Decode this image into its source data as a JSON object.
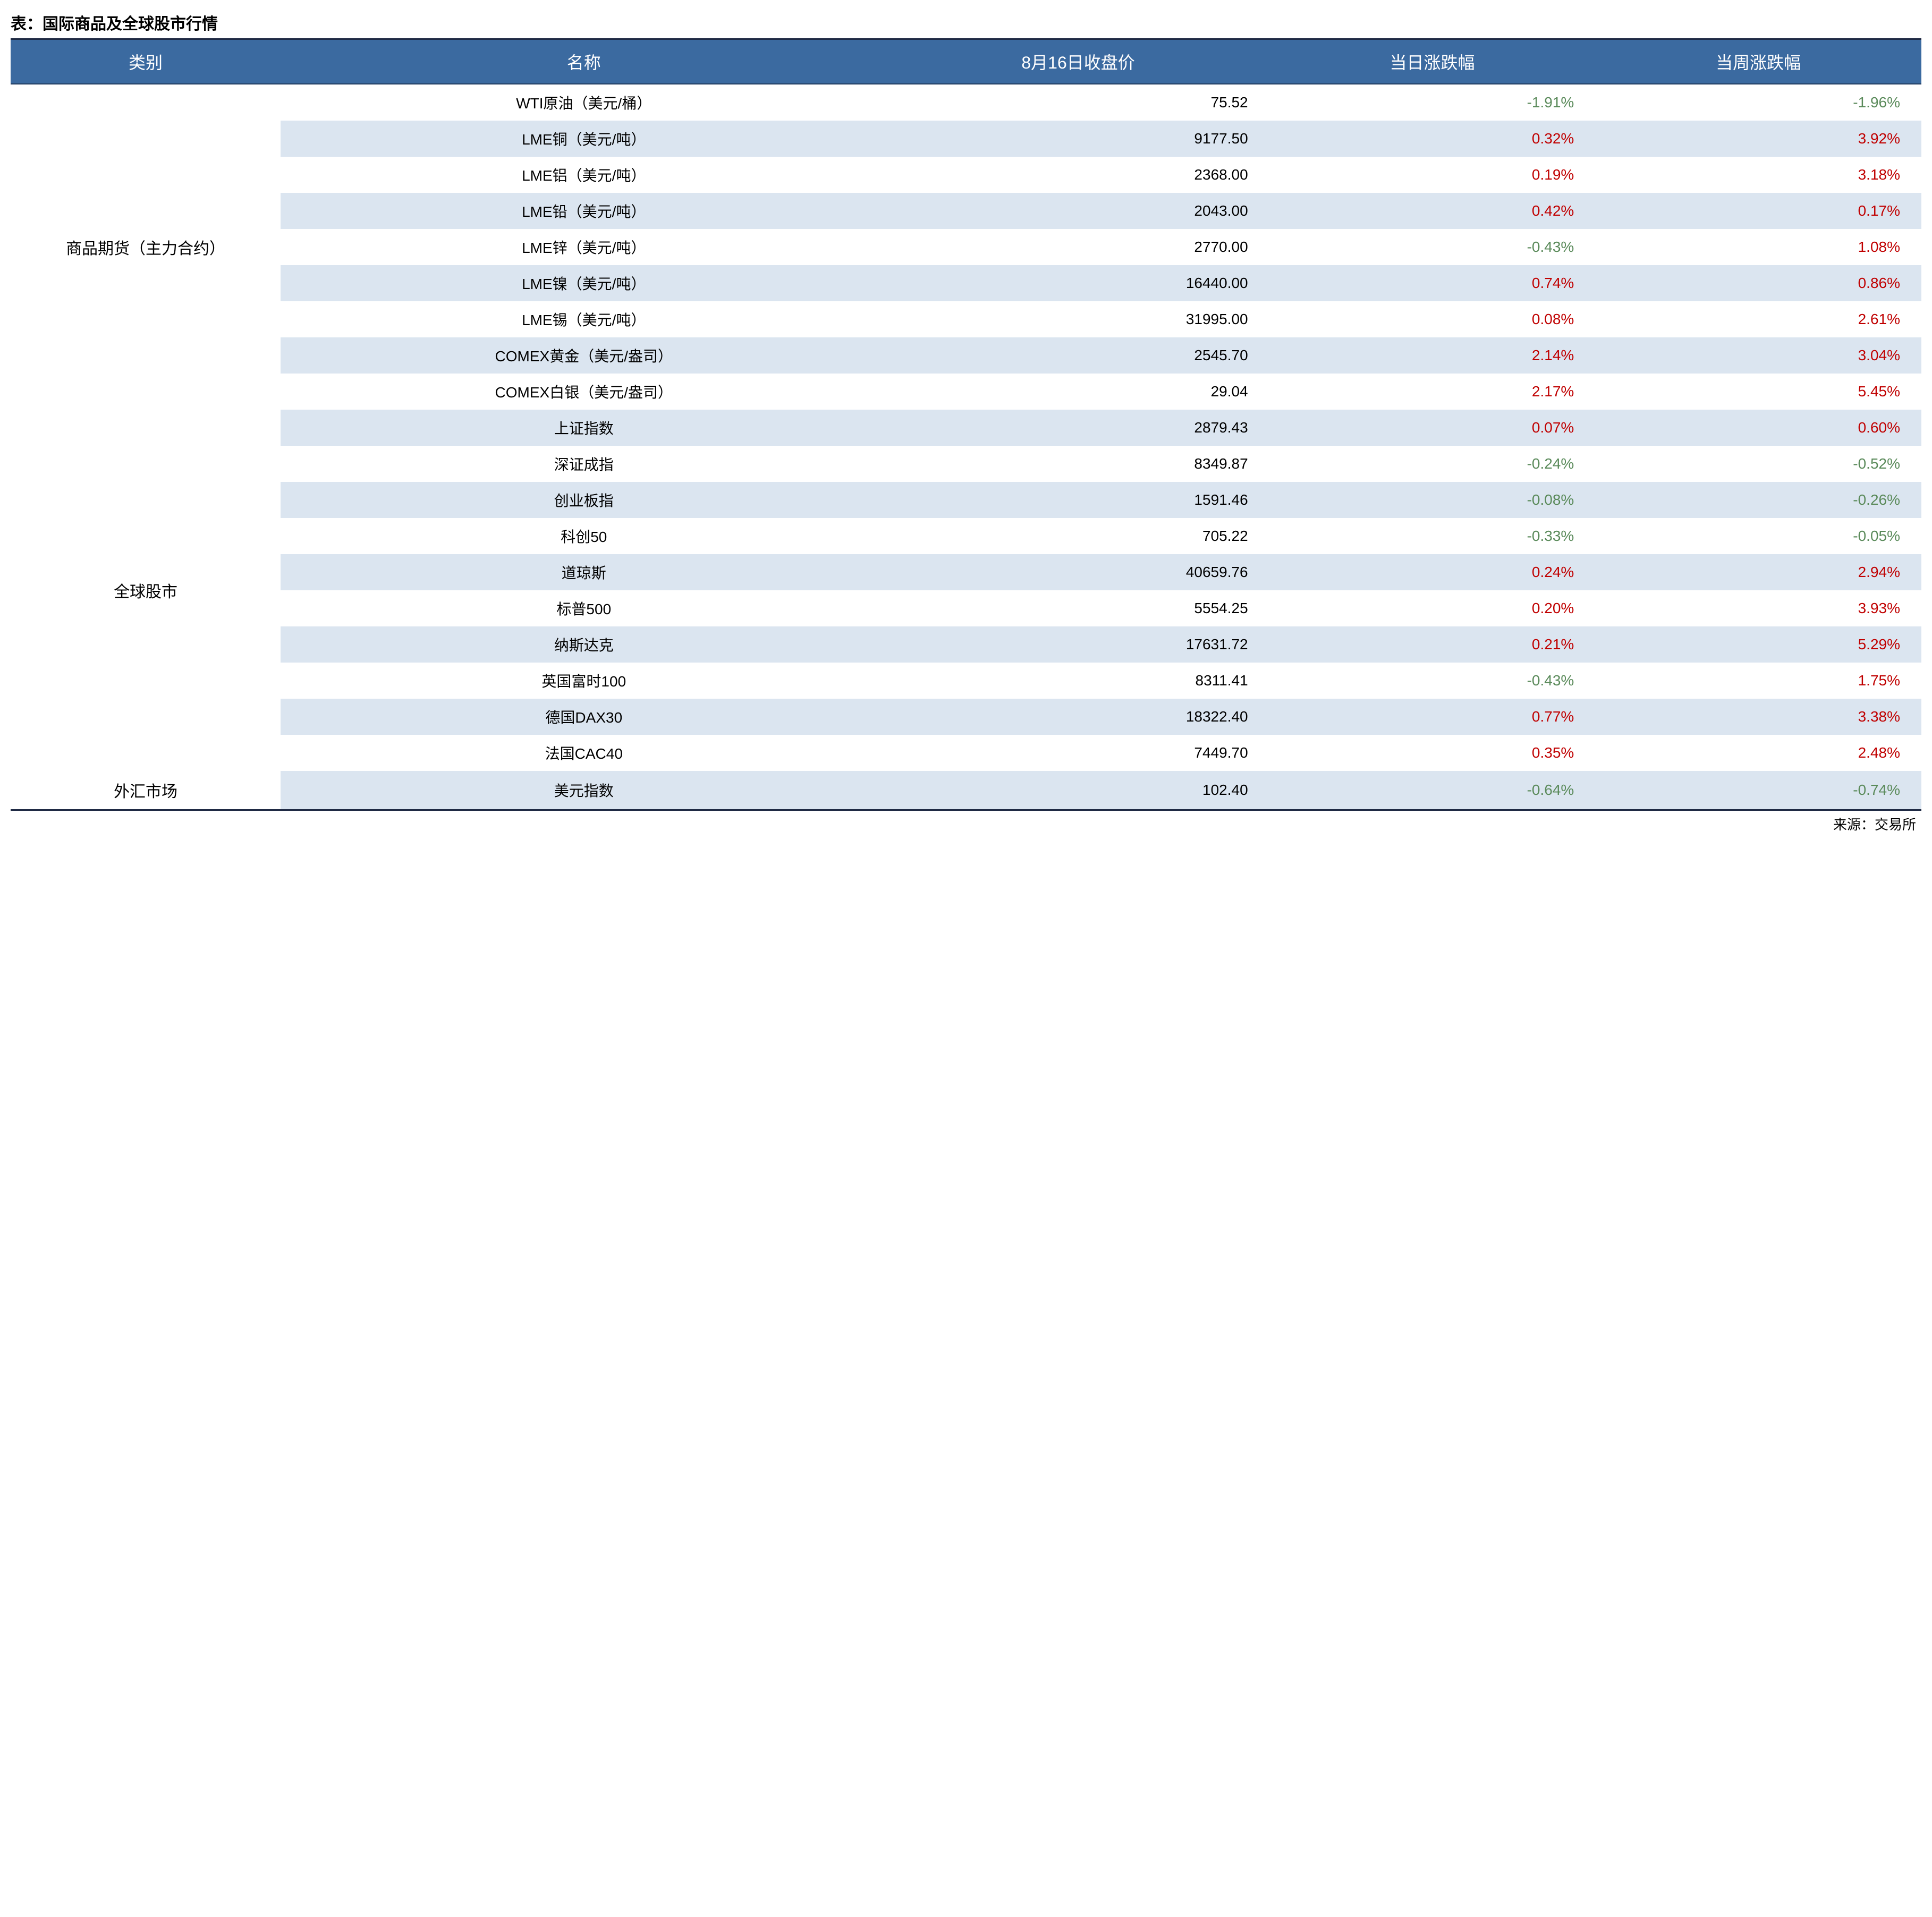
{
  "title": "表：国际商品及全球股市行情",
  "source": "来源：交易所",
  "headers": {
    "category": "类别",
    "name": "名称",
    "close": "8月16日收盘价",
    "day_change": "当日涨跌幅",
    "week_change": "当周涨跌幅"
  },
  "colors": {
    "header_bg": "#3b6aa0",
    "header_text": "#ffffff",
    "row_even_bg": "#dbe5f0",
    "row_odd_bg": "#ffffff",
    "positive": "#c00000",
    "negative": "#5a8a5a",
    "border": "#1f2a44"
  },
  "col_widths_pct": [
    14,
    32,
    20,
    17,
    17
  ],
  "font_sizes_pt": {
    "title": 30,
    "header": 32,
    "body": 28,
    "source": 26
  },
  "groups": [
    {
      "category": "商品期货（主力合约）",
      "rows": [
        {
          "name": "WTI原油（美元/桶）",
          "close": "75.52",
          "day": "-1.91%",
          "day_sign": -1,
          "week": "-1.96%",
          "week_sign": -1
        },
        {
          "name": "LME铜（美元/吨）",
          "close": "9177.50",
          "day": "0.32%",
          "day_sign": 1,
          "week": "3.92%",
          "week_sign": 1
        },
        {
          "name": "LME铝（美元/吨）",
          "close": "2368.00",
          "day": "0.19%",
          "day_sign": 1,
          "week": "3.18%",
          "week_sign": 1
        },
        {
          "name": "LME铅（美元/吨）",
          "close": "2043.00",
          "day": "0.42%",
          "day_sign": 1,
          "week": "0.17%",
          "week_sign": 1
        },
        {
          "name": "LME锌（美元/吨）",
          "close": "2770.00",
          "day": "-0.43%",
          "day_sign": -1,
          "week": "1.08%",
          "week_sign": 1
        },
        {
          "name": "LME镍（美元/吨）",
          "close": "16440.00",
          "day": "0.74%",
          "day_sign": 1,
          "week": "0.86%",
          "week_sign": 1
        },
        {
          "name": "LME锡（美元/吨）",
          "close": "31995.00",
          "day": "0.08%",
          "day_sign": 1,
          "week": "2.61%",
          "week_sign": 1
        },
        {
          "name": "COMEX黄金（美元/盎司）",
          "close": "2545.70",
          "day": "2.14%",
          "day_sign": 1,
          "week": "3.04%",
          "week_sign": 1
        },
        {
          "name": "COMEX白银（美元/盎司）",
          "close": "29.04",
          "day": "2.17%",
          "day_sign": 1,
          "week": "5.45%",
          "week_sign": 1
        }
      ]
    },
    {
      "category": "全球股市",
      "rows": [
        {
          "name": "上证指数",
          "close": "2879.43",
          "day": "0.07%",
          "day_sign": 1,
          "week": "0.60%",
          "week_sign": 1
        },
        {
          "name": "深证成指",
          "close": "8349.87",
          "day": "-0.24%",
          "day_sign": -1,
          "week": "-0.52%",
          "week_sign": -1
        },
        {
          "name": "创业板指",
          "close": "1591.46",
          "day": "-0.08%",
          "day_sign": -1,
          "week": "-0.26%",
          "week_sign": -1
        },
        {
          "name": "科创50",
          "close": "705.22",
          "day": "-0.33%",
          "day_sign": -1,
          "week": "-0.05%",
          "week_sign": -1
        },
        {
          "name": "道琼斯",
          "close": "40659.76",
          "day": "0.24%",
          "day_sign": 1,
          "week": "2.94%",
          "week_sign": 1
        },
        {
          "name": "标普500",
          "close": "5554.25",
          "day": "0.20%",
          "day_sign": 1,
          "week": "3.93%",
          "week_sign": 1
        },
        {
          "name": "纳斯达克",
          "close": "17631.72",
          "day": "0.21%",
          "day_sign": 1,
          "week": "5.29%",
          "week_sign": 1
        },
        {
          "name": "英国富时100",
          "close": "8311.41",
          "day": "-0.43%",
          "day_sign": -1,
          "week": "1.75%",
          "week_sign": 1
        },
        {
          "name": "德国DAX30",
          "close": "18322.40",
          "day": "0.77%",
          "day_sign": 1,
          "week": "3.38%",
          "week_sign": 1
        },
        {
          "name": "法国CAC40",
          "close": "7449.70",
          "day": "0.35%",
          "day_sign": 1,
          "week": "2.48%",
          "week_sign": 1
        }
      ]
    },
    {
      "category": "外汇市场",
      "rows": [
        {
          "name": "美元指数",
          "close": "102.40",
          "day": "-0.64%",
          "day_sign": -1,
          "week": "-0.74%",
          "week_sign": -1
        }
      ]
    }
  ]
}
